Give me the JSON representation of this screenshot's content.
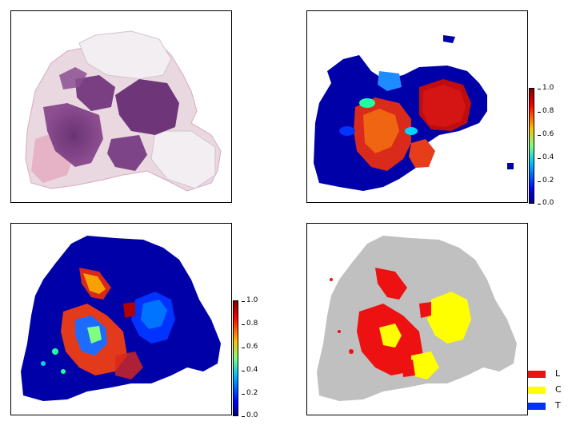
{
  "panels": [
    {
      "name": "he-slide"
    },
    {
      "name": "heatmap-1"
    },
    {
      "name": "heatmap-2"
    },
    {
      "name": "class-map"
    }
  ],
  "colorbar": {
    "ticks": [
      "0.0",
      "0.2",
      "0.4",
      "0.6",
      "0.8",
      "1.0"
    ],
    "colormap": [
      "#00007f",
      "#0000ff",
      "#00bfff",
      "#7fff7f",
      "#ffbf00",
      "#ff0000",
      "#7f0000"
    ]
  },
  "legend": {
    "items": [
      {
        "label": "L",
        "color": "#ee1111"
      },
      {
        "label": "C",
        "color": "#ffff00"
      },
      {
        "label": "T",
        "color": "#0033ff"
      }
    ]
  },
  "colors": {
    "background_gray": "#c0c0c0",
    "tissue_pink": "#e7d2dc",
    "tumor_purple": "#7a3f83"
  }
}
